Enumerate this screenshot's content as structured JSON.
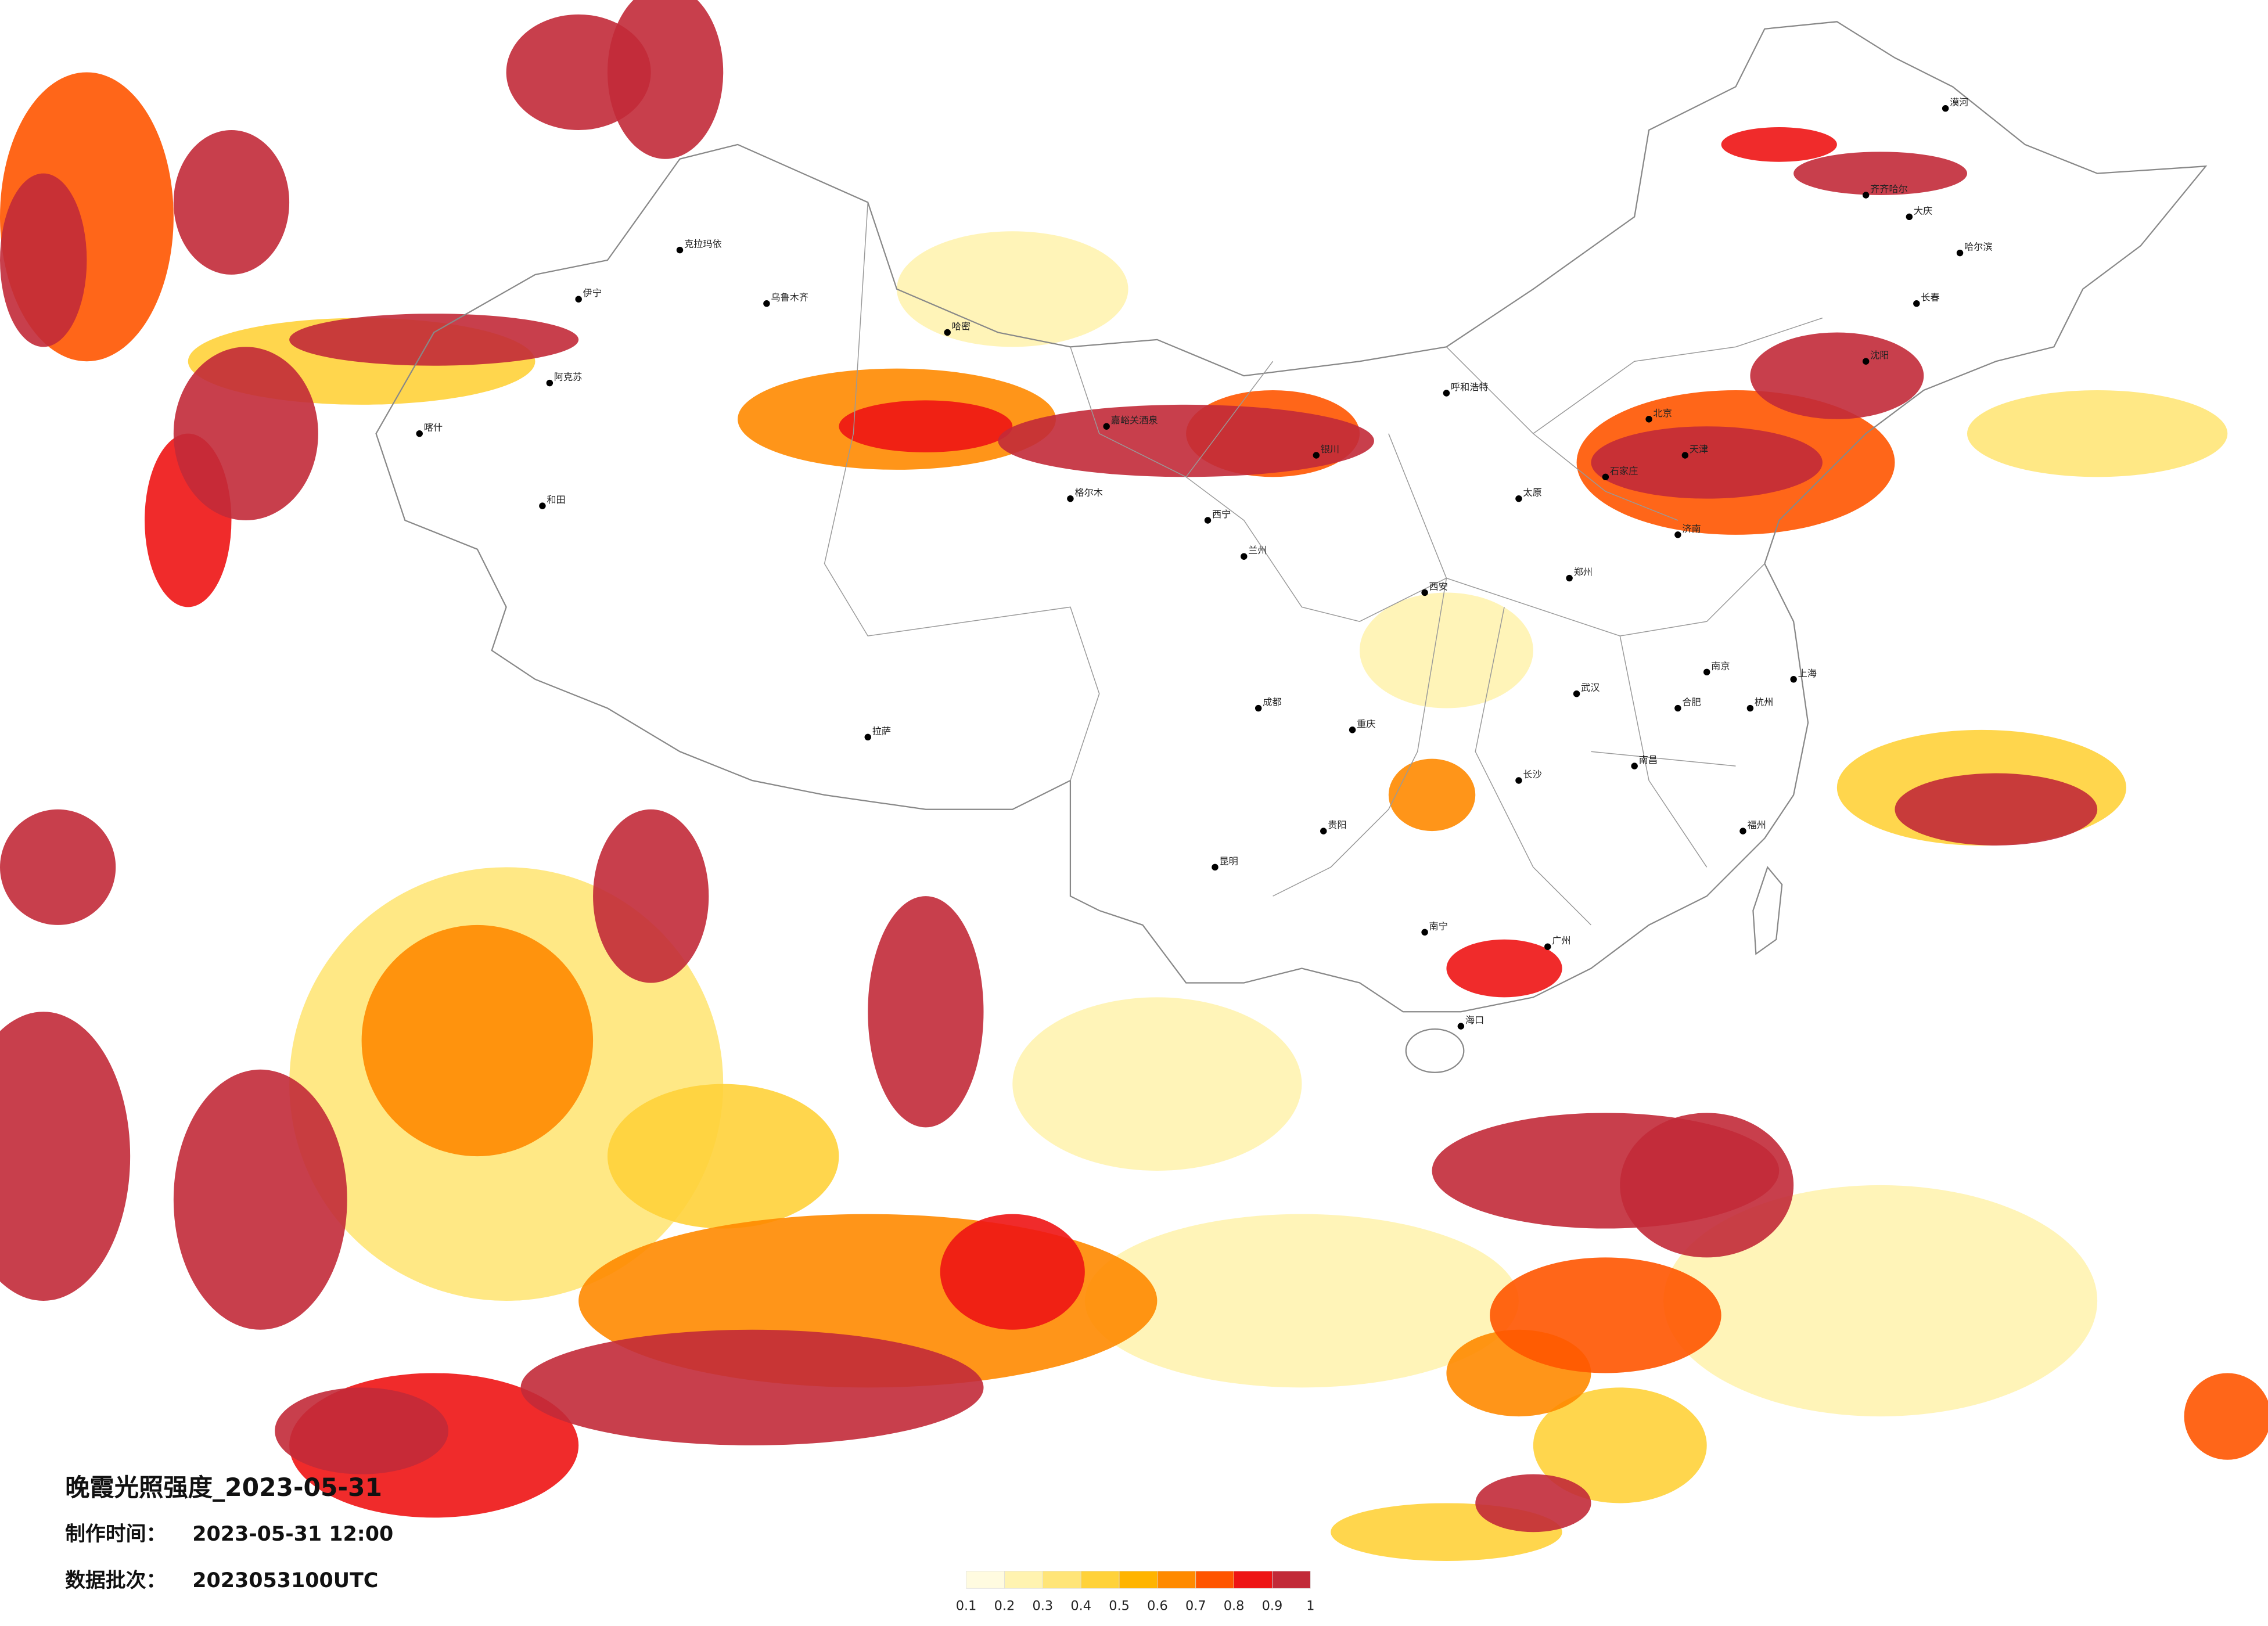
{
  "header": {
    "title": "晚霞光照强度_2023-05-31",
    "made_label": "制作时间：",
    "made_time": "2023-05-31 12:00",
    "batch_label": "数据批次：",
    "batch": "2023053100UTC"
  },
  "legend": {
    "ticks": [
      0.1,
      0.2,
      0.3,
      0.4,
      0.5,
      0.6,
      0.7,
      0.8,
      0.9,
      1
    ],
    "colors": [
      "#fffbe0",
      "#fff3b0",
      "#ffe578",
      "#ffd23a",
      "#ffb400",
      "#ff8a00",
      "#ff5500",
      "#ee1414",
      "#c22a38"
    ]
  },
  "cities": [
    "乌鲁木齐",
    "克拉玛依",
    "伊宁",
    "阿克苏",
    "喀什",
    "和田",
    "哈密",
    "嘉峪关酒泉",
    "格尔木",
    "西宁",
    "兰州",
    "银川",
    "呼和浩特",
    "北京",
    "天津",
    "石家庄",
    "太原",
    "郑州",
    "西安",
    "成都",
    "重庆",
    "拉萨",
    "昆明",
    "贵阳",
    "南宁",
    "广州",
    "长沙",
    "武汉",
    "南昌",
    "杭州",
    "上海",
    "南京",
    "济南",
    "沈阳",
    "长春",
    "哈尔滨",
    "海口",
    "福州",
    "合肥",
    "齐齐哈尔",
    "大庆",
    "漠河"
  ]
}
